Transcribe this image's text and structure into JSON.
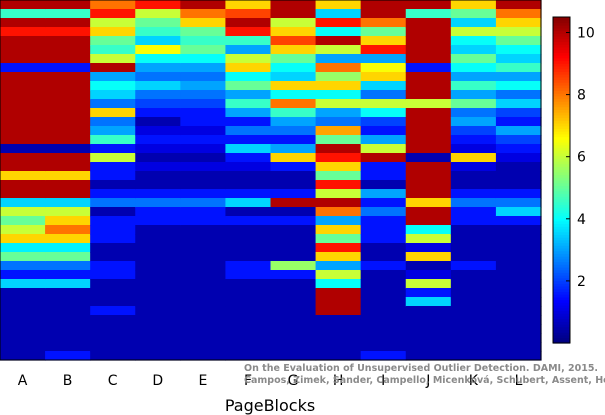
{
  "chart_data": {
    "type": "heatmap",
    "title": "",
    "xlabel": "PageBlocks",
    "ylabel": "",
    "categories": [
      "A",
      "B",
      "C",
      "D",
      "E",
      "F",
      "G",
      "H",
      "I",
      "J",
      "K",
      "L"
    ],
    "colorbar": {
      "min": 0,
      "max": 10.5,
      "ticks": [
        2,
        4,
        6,
        8,
        10
      ],
      "colormap": "jet"
    },
    "columns": [
      {
        "name": "A",
        "cells": [
          10,
          4.5,
          10,
          9,
          10,
          10,
          10,
          1.5,
          10,
          10,
          10,
          10,
          10,
          10,
          10,
          10,
          0.5,
          10,
          10,
          7,
          10,
          10,
          3.5,
          6,
          5,
          6,
          7,
          3.8,
          5,
          2.5,
          1.5,
          3.5,
          0.5,
          0.5,
          0.5,
          0.5,
          0.5,
          0.5,
          0.5,
          0.5
        ]
      },
      {
        "name": "B",
        "cells": [
          10,
          4.5,
          10,
          9,
          10,
          10,
          10,
          1.5,
          10,
          10,
          10,
          10,
          10,
          10,
          10,
          10,
          0.5,
          10,
          10,
          7,
          10,
          10,
          3.5,
          6,
          7,
          8,
          7,
          3.8,
          5,
          2.5,
          1.5,
          3.5,
          0.5,
          0.5,
          0.5,
          0.5,
          0.5,
          0.5,
          0.5,
          1.5
        ]
      },
      {
        "name": "C",
        "cells": [
          8,
          9,
          6,
          7,
          5,
          4.5,
          6,
          10,
          3,
          4,
          3.5,
          2.5,
          7,
          2.5,
          3,
          4.5,
          1.5,
          6,
          1.5,
          1.5,
          0.5,
          1.5,
          2.5,
          0.5,
          1.5,
          1.5,
          1.5,
          0.5,
          0.5,
          1.5,
          1.5,
          0.5,
          0.5,
          0.5,
          1.5,
          0.5,
          0.5,
          0.5,
          0.5,
          0.5
        ]
      },
      {
        "name": "D",
        "cells": [
          9,
          6,
          5,
          4.5,
          3.5,
          6.5,
          4,
          3,
          2.5,
          3.5,
          2.5,
          2,
          1.5,
          0.5,
          1,
          1.5,
          1,
          0.5,
          1,
          0.5,
          0.5,
          1.5,
          2.5,
          1.5,
          1.5,
          0.5,
          0.5,
          0.5,
          0.5,
          0.5,
          0.5,
          0.5,
          0.5,
          0.5,
          0.5,
          0.5,
          0.5,
          0.5,
          0.5,
          0.5
        ]
      },
      {
        "name": "E",
        "cells": [
          10,
          8,
          7,
          5,
          4.5,
          5,
          4,
          3,
          2.5,
          3,
          2.5,
          2,
          1.5,
          1.5,
          1,
          1.5,
          1,
          0.5,
          1,
          0.5,
          0.5,
          1.5,
          2.5,
          1.5,
          1.5,
          0.5,
          0.5,
          0.5,
          0.5,
          0.5,
          0.5,
          0.5,
          0.5,
          0.5,
          0.5,
          0.5,
          0.5,
          0.5,
          0.5,
          0.5
        ]
      },
      {
        "name": "F",
        "cells": [
          7,
          8.5,
          10,
          9,
          4.5,
          3,
          6,
          7,
          4,
          5,
          3,
          4.5,
          3,
          1.5,
          2.5,
          1.5,
          3.5,
          1.5,
          1,
          0.5,
          0.5,
          1.5,
          3.5,
          0.5,
          1.5,
          0.5,
          0.5,
          0.5,
          0.5,
          1.5,
          1.5,
          0.5,
          0.5,
          0.5,
          0.5,
          0.5,
          0.5,
          0.5,
          0.5,
          0.5
        ]
      },
      {
        "name": "G",
        "cells": [
          10,
          10,
          6,
          7,
          8.5,
          7,
          5,
          4,
          3.5,
          7,
          4,
          8,
          4.5,
          3,
          2.5,
          1.5,
          3,
          7,
          1.5,
          0.5,
          0.5,
          1.5,
          10,
          0.5,
          1.5,
          0.5,
          0.5,
          0.5,
          0.5,
          5.5,
          1.5,
          0.5,
          0.5,
          0.5,
          0.5,
          0.5,
          0.5,
          0.5,
          0.5,
          0.5
        ]
      },
      {
        "name": "H",
        "cells": [
          7,
          3.5,
          9,
          4,
          10,
          6,
          3,
          8,
          5.5,
          7,
          4,
          6,
          3,
          2.5,
          7.5,
          5,
          10,
          9,
          7,
          5,
          9,
          6,
          10,
          8,
          3,
          7,
          5,
          9,
          7,
          3,
          6,
          4,
          10,
          10,
          10,
          0.5,
          0.5,
          0.5,
          0.5,
          0.5
        ]
      },
      {
        "name": "I",
        "cells": [
          10,
          10,
          8,
          5,
          7,
          9,
          3,
          6.5,
          7,
          3.5,
          2.5,
          6,
          4,
          2,
          1.5,
          3,
          6,
          10,
          1.5,
          1.5,
          0.5,
          3,
          1.5,
          2.5,
          1.5,
          1.5,
          1.5,
          0.5,
          0.5,
          1.5,
          0.5,
          0.5,
          0.5,
          0.5,
          0.5,
          0.5,
          0.5,
          0.5,
          0.5,
          1.5
        ]
      },
      {
        "name": "J",
        "cells": [
          10,
          4.5,
          10,
          10,
          10,
          10,
          10,
          1.5,
          10,
          10,
          10,
          6,
          10,
          10,
          10,
          10,
          10,
          0.5,
          10,
          10,
          10,
          10,
          7,
          10,
          10,
          4,
          6,
          1,
          7,
          0.5,
          1,
          6,
          1.5,
          3.5,
          0.5,
          0.5,
          0.5,
          0.5,
          0.5,
          0.5
        ]
      },
      {
        "name": "K",
        "cells": [
          7,
          5,
          3.5,
          6,
          4,
          3.5,
          5,
          4,
          3,
          4.5,
          3,
          5,
          2.5,
          3,
          2,
          1.5,
          1,
          7,
          1,
          0.5,
          0.5,
          1.5,
          2.5,
          1.5,
          1.5,
          0.5,
          0.5,
          0.5,
          0.5,
          1.5,
          0.5,
          0.5,
          0.5,
          0.5,
          0.5,
          0.5,
          0.5,
          0.5,
          0.5,
          0.5
        ]
      },
      {
        "name": "L",
        "cells": [
          10,
          8,
          7,
          6,
          5,
          4,
          3.5,
          4.5,
          3,
          4,
          2.5,
          3.5,
          2,
          1.5,
          3,
          2,
          1.5,
          1,
          0.5,
          0.5,
          0.5,
          1.5,
          2.5,
          3.5,
          1.5,
          0.5,
          0.5,
          0.5,
          0.5,
          0.5,
          0.5,
          0.5,
          0.5,
          0.5,
          0.5,
          0.5,
          0.5,
          0.5,
          0.5,
          0.5
        ]
      }
    ]
  },
  "credit": {
    "line1": "On the Evaluation of Unsupervised Outlier Detection. DAMI, 2015.",
    "line2": "Campos, Zimek, Sander, Campello, Micenková, Schubert, Assent, Houle"
  }
}
